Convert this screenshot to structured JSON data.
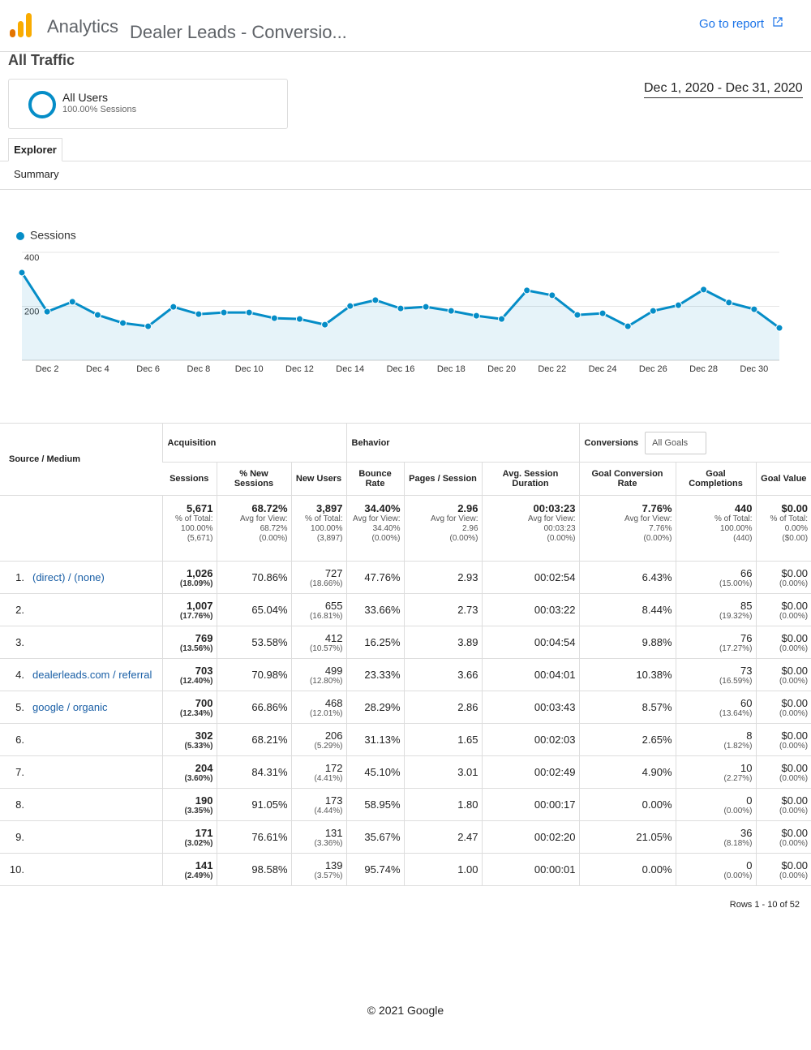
{
  "header": {
    "app": "Analytics",
    "report": "Dealer Leads - Conversio...",
    "go_to_report": "Go to report"
  },
  "view": {
    "title": "All Traffic",
    "segment": {
      "name": "All Users",
      "detail": "100.00% Sessions"
    },
    "date_range": "Dec 1, 2020 - Dec 31, 2020"
  },
  "tabs": [
    "Explorer"
  ],
  "subtab": "Summary",
  "chart_data": {
    "type": "line",
    "categories": [
      null,
      "Dec 2",
      null,
      "Dec 4",
      null,
      "Dec 6",
      null,
      "Dec 8",
      null,
      "Dec 10",
      null,
      "Dec 12",
      null,
      "Dec 14",
      null,
      "Dec 16",
      null,
      "Dec 18",
      null,
      "Dec 20",
      null,
      "Dec 22",
      null,
      "Dec 24",
      null,
      "Dec 26",
      null,
      "Dec 28",
      null,
      "Dec 30",
      null
    ],
    "series": [
      {
        "name": "Sessions",
        "color": "#058dc7",
        "values": [
          325,
          180,
          217,
          168,
          138,
          126,
          198,
          171,
          177,
          177,
          156,
          153,
          132,
          201,
          223,
          192,
          198,
          183,
          165,
          153,
          259,
          241,
          168,
          174,
          126,
          183,
          204,
          262,
          214,
          189,
          120
        ]
      }
    ],
    "ylim": [
      0,
      400
    ],
    "yticks": [
      200,
      400
    ],
    "grid": true,
    "area": true,
    "legend": "top-left"
  },
  "table": {
    "source_header": "Source / Medium",
    "groups": [
      {
        "name": "Acquisition",
        "span": 3
      },
      {
        "name": "Behavior",
        "span": 3
      },
      {
        "name": "Conversions",
        "span": 3,
        "select": "All Goals"
      }
    ],
    "columns": [
      "Sessions",
      "% New Sessions",
      "New Users",
      "Bounce Rate",
      "Pages / Session",
      "Avg. Session Duration",
      "Goal Conversion Rate",
      "Goal Completions",
      "Goal Value"
    ],
    "totals": [
      {
        "value": "5,671",
        "lines": [
          "% of Total:",
          "100.00%",
          "(5,671)"
        ]
      },
      {
        "value": "68.72%",
        "lines": [
          "Avg for View:",
          "68.72%",
          "(0.00%)"
        ]
      },
      {
        "value": "3,897",
        "lines": [
          "% of Total:",
          "100.00%",
          "(3,897)"
        ]
      },
      {
        "value": "34.40%",
        "lines": [
          "Avg for View:",
          "34.40%",
          "(0.00%)"
        ]
      },
      {
        "value": "2.96",
        "lines": [
          "Avg for View:",
          "2.96",
          "(0.00%)"
        ]
      },
      {
        "value": "00:03:23",
        "lines": [
          "Avg for View:",
          "00:03:23",
          "(0.00%)"
        ]
      },
      {
        "value": "7.76%",
        "lines": [
          "Avg for View:",
          "7.76%",
          "(0.00%)"
        ]
      },
      {
        "value": "440",
        "lines": [
          "% of Total:",
          "100.00%",
          "(440)"
        ]
      },
      {
        "value": "$0.00",
        "lines": [
          "% of Total:",
          "0.00%",
          "($0.00)"
        ]
      }
    ],
    "rows": [
      {
        "rank": "1.",
        "source": "(direct) / (none)",
        "cells": [
          [
            "1,026",
            "(18.09%)"
          ],
          [
            "70.86%"
          ],
          [
            "727",
            "(18.66%)"
          ],
          [
            "47.76%"
          ],
          [
            "2.93"
          ],
          [
            "00:02:54"
          ],
          [
            "6.43%"
          ],
          [
            "66",
            "(15.00%)"
          ],
          [
            "$0.00",
            "(0.00%)"
          ]
        ]
      },
      {
        "rank": "2.",
        "cells": [
          [
            "1,007",
            "(17.76%)"
          ],
          [
            "65.04%"
          ],
          [
            "655",
            "(16.81%)"
          ],
          [
            "33.66%"
          ],
          [
            "2.73"
          ],
          [
            "00:03:22"
          ],
          [
            "8.44%"
          ],
          [
            "85",
            "(19.32%)"
          ],
          [
            "$0.00",
            "(0.00%)"
          ]
        ]
      },
      {
        "rank": "3.",
        "cells": [
          [
            "769",
            "(13.56%)"
          ],
          [
            "53.58%"
          ],
          [
            "412",
            "(10.57%)"
          ],
          [
            "16.25%"
          ],
          [
            "3.89"
          ],
          [
            "00:04:54"
          ],
          [
            "9.88%"
          ],
          [
            "76",
            "(17.27%)"
          ],
          [
            "$0.00",
            "(0.00%)"
          ]
        ]
      },
      {
        "rank": "4.",
        "source": "dealerleads.com / referral",
        "cells": [
          [
            "703",
            "(12.40%)"
          ],
          [
            "70.98%"
          ],
          [
            "499",
            "(12.80%)"
          ],
          [
            "23.33%"
          ],
          [
            "3.66"
          ],
          [
            "00:04:01"
          ],
          [
            "10.38%"
          ],
          [
            "73",
            "(16.59%)"
          ],
          [
            "$0.00",
            "(0.00%)"
          ]
        ]
      },
      {
        "rank": "5.",
        "source": "google / organic",
        "cells": [
          [
            "700",
            "(12.34%)"
          ],
          [
            "66.86%"
          ],
          [
            "468",
            "(12.01%)"
          ],
          [
            "28.29%"
          ],
          [
            "2.86"
          ],
          [
            "00:03:43"
          ],
          [
            "8.57%"
          ],
          [
            "60",
            "(13.64%)"
          ],
          [
            "$0.00",
            "(0.00%)"
          ]
        ]
      },
      {
        "rank": "6.",
        "cells": [
          [
            "302",
            "(5.33%)"
          ],
          [
            "68.21%"
          ],
          [
            "206",
            "(5.29%)"
          ],
          [
            "31.13%"
          ],
          [
            "1.65"
          ],
          [
            "00:02:03"
          ],
          [
            "2.65%"
          ],
          [
            "8",
            "(1.82%)"
          ],
          [
            "$0.00",
            "(0.00%)"
          ]
        ]
      },
      {
        "rank": "7.",
        "cells": [
          [
            "204",
            "(3.60%)"
          ],
          [
            "84.31%"
          ],
          [
            "172",
            "(4.41%)"
          ],
          [
            "45.10%"
          ],
          [
            "3.01"
          ],
          [
            "00:02:49"
          ],
          [
            "4.90%"
          ],
          [
            "10",
            "(2.27%)"
          ],
          [
            "$0.00",
            "(0.00%)"
          ]
        ]
      },
      {
        "rank": "8.",
        "cells": [
          [
            "190",
            "(3.35%)"
          ],
          [
            "91.05%"
          ],
          [
            "173",
            "(4.44%)"
          ],
          [
            "58.95%"
          ],
          [
            "1.80"
          ],
          [
            "00:00:17"
          ],
          [
            "0.00%"
          ],
          [
            "0",
            "(0.00%)"
          ],
          [
            "$0.00",
            "(0.00%)"
          ]
        ]
      },
      {
        "rank": "9.",
        "cells": [
          [
            "171",
            "(3.02%)"
          ],
          [
            "76.61%"
          ],
          [
            "131",
            "(3.36%)"
          ],
          [
            "35.67%"
          ],
          [
            "2.47"
          ],
          [
            "00:02:20"
          ],
          [
            "21.05%"
          ],
          [
            "36",
            "(8.18%)"
          ],
          [
            "$0.00",
            "(0.00%)"
          ]
        ]
      },
      {
        "rank": "10.",
        "cells": [
          [
            "141",
            "(2.49%)"
          ],
          [
            "98.58%"
          ],
          [
            "139",
            "(3.57%)"
          ],
          [
            "95.74%"
          ],
          [
            "1.00"
          ],
          [
            "00:00:01"
          ],
          [
            "0.00%"
          ],
          [
            "0",
            "(0.00%)"
          ],
          [
            "$0.00",
            "(0.00%)"
          ]
        ]
      }
    ],
    "pagination": "Rows 1 - 10 of 52"
  },
  "footer": "© 2021 Google"
}
